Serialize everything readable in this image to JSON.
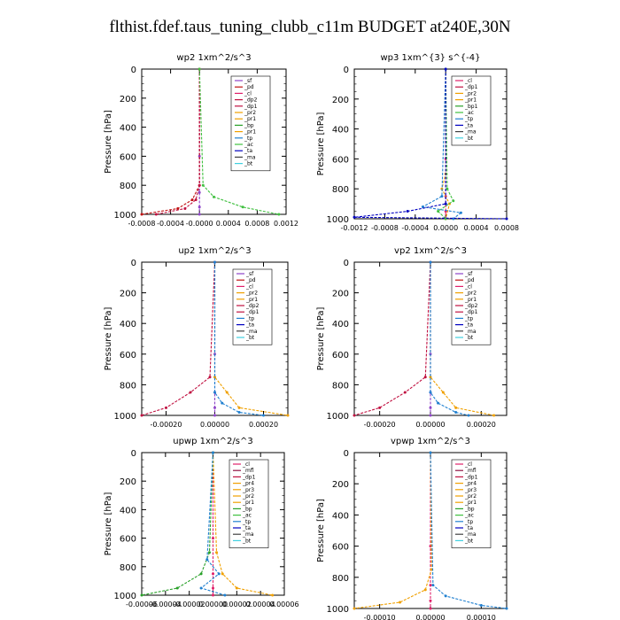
{
  "page_title": "flthist.fdef.taus_tuning_clubb_c11m  BUDGET at240E,30N",
  "colors": {
    "sf": "#8e44c8",
    "pd": "#c01010",
    "cl": "#e0206a",
    "dp": "#c01040",
    "pr": "#f0a000",
    "bp": "#28a028",
    "ac": "#40c040",
    "tp": "#2080d0",
    "ta": "#0000c0",
    "ma": "#404040",
    "bt": "#40d0e0",
    "mfl": "#8e1040"
  },
  "chart_data": [
    {
      "type": "line",
      "title": "wp2   1xm^2/s^3",
      "ylabel": "Pressure  [hPa]",
      "xlabel": "",
      "ylim": [
        0,
        1000
      ],
      "y_reversed": true,
      "yticks": [
        "0",
        "200",
        "400",
        "600",
        "800",
        "1000"
      ],
      "xlim": [
        -0.0008,
        0.0012
      ],
      "xticks": [
        -0.0008,
        -0.0004,
        0.0,
        0.0004,
        0.0008,
        0.0012
      ],
      "xtick_labels": [
        "-0.0008",
        "-0.0004",
        "-0.0000",
        "0.0004",
        "0.0008",
        "0.0012"
      ],
      "legend_position": "top-right",
      "legend": [
        "_sf",
        "_pd",
        "_cl",
        "_dp2",
        "_dp1",
        "_pr2",
        "_pr1",
        "_bp",
        "_pr1",
        "_tp",
        "_ac",
        "_ta",
        "_ma",
        "_bt"
      ],
      "series": [
        {
          "name": "_sf",
          "x": [
            0,
            0,
            0,
            0,
            0
          ],
          "y": [
            0,
            600,
            850,
            950,
            1000
          ]
        },
        {
          "name": "_pd",
          "x": [
            0,
            0,
            -0.0001,
            -0.0003,
            -0.0008
          ],
          "y": [
            0,
            800,
            900,
            960,
            1000
          ]
        },
        {
          "name": "_dp1",
          "x": [
            0,
            0,
            -5e-05,
            -0.0002,
            -0.0006
          ],
          "y": [
            0,
            800,
            900,
            960,
            1000
          ]
        },
        {
          "name": "_ac",
          "x": [
            0,
            5e-05,
            0.0002,
            0.0006,
            0.0011
          ],
          "y": [
            0,
            800,
            880,
            950,
            1000
          ]
        }
      ]
    },
    {
      "type": "line",
      "title": "wp3   1xm^{3} s^{-4}",
      "ylabel": "Pressure  [hPa]",
      "xlabel": "",
      "ylim": [
        0,
        1000
      ],
      "y_reversed": true,
      "yticks": [
        "0",
        "200",
        "400",
        "600",
        "800",
        "1000"
      ],
      "xlim": [
        -0.0012,
        0.0008
      ],
      "xticks": [
        -0.0012,
        -0.0008,
        -0.0004,
        0.0,
        0.0004,
        0.0008
      ],
      "xtick_labels": [
        "-0.0012",
        "-0.0008",
        "-0.0004",
        "0.0000",
        "0.0004",
        "0.0008"
      ],
      "legend_position": "top-right",
      "legend": [
        "_cl",
        "_dp1",
        "_pr2",
        "_pr1",
        "_bp1",
        "_ac",
        "_tp",
        "_ta",
        "_ma",
        "_bt"
      ],
      "series": [
        {
          "name": "_cl",
          "x": [
            0,
            0,
            0,
            0,
            0
          ],
          "y": [
            0,
            600,
            850,
            950,
            1000
          ]
        },
        {
          "name": "_pr1",
          "x": [
            0,
            0,
            -5e-05,
            5e-05,
            0
          ],
          "y": [
            0,
            700,
            800,
            900,
            1000
          ]
        },
        {
          "name": "_ac",
          "x": [
            0,
            2e-05,
            0.0001,
            -0.0001,
            0
          ],
          "y": [
            0,
            800,
            880,
            950,
            1000
          ]
        },
        {
          "name": "_tp",
          "x": [
            0,
            -5e-05,
            -0.0003,
            0.0002,
            0.0001
          ],
          "y": [
            0,
            850,
            920,
            960,
            1000
          ]
        },
        {
          "name": "_ta",
          "x": [
            0,
            0,
            -0.0005,
            -0.0012,
            0.0008
          ],
          "y": [
            0,
            900,
            950,
            990,
            1000
          ]
        }
      ]
    },
    {
      "type": "line",
      "title": "up2   1xm^2/s^3",
      "ylabel": "Pressure  [hPa]",
      "xlabel": "",
      "ylim": [
        0,
        1000
      ],
      "y_reversed": true,
      "yticks": [
        "0",
        "200",
        "400",
        "600",
        "800",
        "1000"
      ],
      "xlim": [
        -0.0003,
        0.0003
      ],
      "xticks": [
        -0.0002,
        0.0,
        0.0002
      ],
      "xtick_labels": [
        "-0.00020",
        "0.00000",
        "0.00020"
      ],
      "legend_position": "top-right",
      "legend": [
        "_sf",
        "_pd",
        "_cl",
        "_pr2",
        "_pr1",
        "_dp2",
        "_dp1",
        "_tp",
        "_ta",
        "_ma",
        "_bt"
      ],
      "series": [
        {
          "name": "_sf",
          "x": [
            0,
            0,
            0,
            0,
            0
          ],
          "y": [
            0,
            600,
            850,
            950,
            1000
          ]
        },
        {
          "name": "_pr1",
          "x": [
            0,
            0,
            5e-05,
            0.0001,
            0.0003
          ],
          "y": [
            0,
            750,
            850,
            950,
            1000
          ]
        },
        {
          "name": "_dp1",
          "x": [
            0,
            -2e-05,
            -0.0001,
            -0.0002,
            -0.0003
          ],
          "y": [
            0,
            750,
            850,
            950,
            1000
          ]
        },
        {
          "name": "_tp",
          "x": [
            0,
            0,
            3e-05,
            0.0001,
            0.0002
          ],
          "y": [
            0,
            850,
            920,
            980,
            1000
          ]
        }
      ]
    },
    {
      "type": "line",
      "title": "vp2   1xm^2/s^3",
      "ylabel": "Pressure  [hPa]",
      "xlabel": "",
      "ylim": [
        0,
        1000
      ],
      "y_reversed": true,
      "yticks": [
        "0",
        "200",
        "400",
        "600",
        "800",
        "1000"
      ],
      "xlim": [
        -0.0003,
        0.0003
      ],
      "xticks": [
        -0.0002,
        0.0,
        0.0002
      ],
      "xtick_labels": [
        "-0.00020",
        "0.00000",
        "0.00020"
      ],
      "legend_position": "top-right",
      "legend": [
        "_sf",
        "_pd",
        "_cl",
        "_pr2",
        "_pr1",
        "_dp2",
        "_dp1",
        "_tp",
        "_ta",
        "_ma",
        "_bt"
      ],
      "series": [
        {
          "name": "_sf",
          "x": [
            0,
            0,
            0,
            0,
            0
          ],
          "y": [
            0,
            600,
            850,
            950,
            1000
          ]
        },
        {
          "name": "_pr1",
          "x": [
            0,
            0,
            5e-05,
            0.0001,
            0.00025
          ],
          "y": [
            0,
            750,
            850,
            950,
            1000
          ]
        },
        {
          "name": "_dp1",
          "x": [
            0,
            -2e-05,
            -0.0001,
            -0.0002,
            -0.0003
          ],
          "y": [
            0,
            750,
            850,
            950,
            1000
          ]
        },
        {
          "name": "_tp",
          "x": [
            0,
            0,
            3e-05,
            0.0001,
            0.00015
          ],
          "y": [
            0,
            850,
            920,
            980,
            1000
          ]
        }
      ]
    },
    {
      "type": "line",
      "title": "upwp   1xm^2/s^3",
      "ylabel": "Pressure  [hPa]",
      "xlabel": "",
      "ylim": [
        0,
        1000
      ],
      "y_reversed": true,
      "yticks": [
        "0",
        "200",
        "400",
        "600",
        "800",
        "1000"
      ],
      "xlim": [
        -6e-05,
        6e-05
      ],
      "xticks": [
        -6e-05,
        -4e-05,
        -2e-05,
        0.0,
        2e-05,
        4e-05,
        6e-05
      ],
      "xtick_labels": [
        "-0.00006",
        "-0.00004",
        "-0.00002",
        "0.00000",
        "0.00002",
        "0.00004",
        "0.00006"
      ],
      "legend_position": "top-right",
      "legend": [
        "_cl",
        "_mfl",
        "_dp1",
        "_pr4",
        "_pr3",
        "_pr2",
        "_pr1",
        "_bp",
        "_ac",
        "_tp",
        "_ta",
        "_ma",
        "_bt"
      ],
      "series": [
        {
          "name": "_cl",
          "x": [
            0,
            0,
            0,
            0,
            0
          ],
          "y": [
            0,
            600,
            850,
            950,
            1000
          ]
        },
        {
          "name": "_pr1",
          "x": [
            0,
            3e-06,
            8e-06,
            2e-05,
            5e-05
          ],
          "y": [
            0,
            700,
            850,
            950,
            1000
          ]
        },
        {
          "name": "_bp",
          "x": [
            0,
            -3e-06,
            -1e-05,
            -3e-05,
            -6e-05
          ],
          "y": [
            0,
            700,
            850,
            950,
            1000
          ]
        },
        {
          "name": "_tp",
          "x": [
            0,
            -5e-06,
            5e-06,
            -1e-05,
            1e-05
          ],
          "y": [
            0,
            750,
            850,
            950,
            1000
          ]
        }
      ]
    },
    {
      "type": "line",
      "title": "vpwp   1xm^2/s^3",
      "ylabel": "Pressure  [hPa]",
      "xlabel": "",
      "ylim": [
        0,
        1000
      ],
      "y_reversed": true,
      "yticks": [
        "0",
        "200",
        "400",
        "600",
        "800",
        "1000"
      ],
      "xlim": [
        -0.00015,
        0.00015
      ],
      "xticks": [
        -0.0001,
        0.0,
        0.0001
      ],
      "xtick_labels": [
        "-0.00010",
        "0.00000",
        "0.00010"
      ],
      "legend_position": "top-right",
      "legend": [
        "_cl",
        "_mfl",
        "_dp1",
        "_pr4",
        "_pr3",
        "_pr2",
        "_pr1",
        "_bp",
        "_ac",
        "_tp",
        "_ta",
        "_ma",
        "_bt"
      ],
      "series": [
        {
          "name": "_cl",
          "x": [
            0,
            0,
            0,
            0,
            0
          ],
          "y": [
            0,
            600,
            850,
            950,
            1000
          ]
        },
        {
          "name": "_pr1",
          "x": [
            0,
            2e-06,
            -1e-05,
            -6e-05,
            -0.00015
          ],
          "y": [
            0,
            750,
            880,
            960,
            1000
          ]
        },
        {
          "name": "_tp",
          "x": [
            0,
            5e-06,
            3e-05,
            0.0001,
            0.00015
          ],
          "y": [
            0,
            850,
            920,
            980,
            1000
          ]
        }
      ]
    }
  ]
}
